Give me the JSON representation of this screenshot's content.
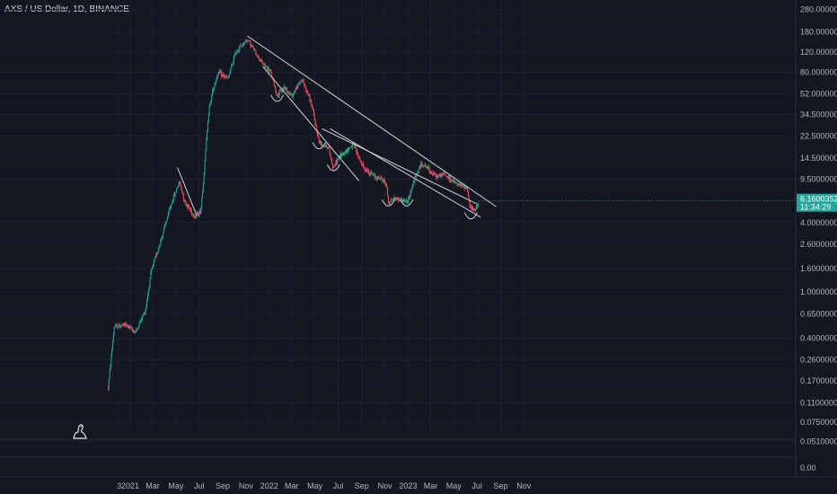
{
  "title": "AXS / US Dollar, 1D, BINANCE",
  "chart_data": {
    "type": "candlestick",
    "scale": "log",
    "y_ticks": [
      "280.0000000",
      "180.0000000",
      "120.0000000",
      "80.0000000",
      "52.0000000",
      "34.5000000",
      "22.5000000",
      "14.5000000",
      "9.5000000",
      "6.1600352",
      "4.0000000",
      "2.6000000",
      "1.6000000",
      "1.0000000",
      "0.6500000",
      "0.4000000",
      "0.2600000",
      "0.1700000",
      "0.1100000",
      "0.0750000",
      "0.0510000"
    ],
    "y_ticks_numeric": [
      280,
      180,
      120,
      80,
      52,
      34.5,
      22.5,
      14.5,
      9.5,
      6.1600352,
      4,
      2.6,
      1.6,
      1,
      0.65,
      0.4,
      0.26,
      0.17,
      0.11,
      0.075,
      0.051
    ],
    "x_ticks": [
      "3",
      "2021",
      "Mar",
      "May",
      "Jul",
      "Sep",
      "Nov",
      "2022",
      "Mar",
      "May",
      "Jul",
      "Sep",
      "Nov",
      "2023",
      "Mar",
      "May",
      "Jul",
      "Sep",
      "Nov"
    ],
    "last_price": {
      "label": "6.1600352",
      "countdown": "11:34:29",
      "value": 6.16
    },
    "volume_pane_value": "0.00",
    "series": [
      {
        "date": "2020-11-04",
        "close": 0.15
      },
      {
        "date": "2020-11-20",
        "close": 0.5
      },
      {
        "date": "2020-12-20",
        "close": 0.52
      },
      {
        "date": "2021-01-15",
        "close": 0.45
      },
      {
        "date": "2021-02-10",
        "close": 0.7
      },
      {
        "date": "2021-02-25",
        "close": 1.5
      },
      {
        "date": "2021-03-25",
        "close": 3.0
      },
      {
        "date": "2021-04-20",
        "close": 6.0
      },
      {
        "date": "2021-05-10",
        "close": 9.0
      },
      {
        "date": "2021-05-25",
        "close": 6.0
      },
      {
        "date": "2021-06-20",
        "close": 4.5
      },
      {
        "date": "2021-07-05",
        "close": 5.0
      },
      {
        "date": "2021-07-15",
        "close": 12.0
      },
      {
        "date": "2021-07-25",
        "close": 35.0
      },
      {
        "date": "2021-08-05",
        "close": 55.0
      },
      {
        "date": "2021-08-20",
        "close": 80.0
      },
      {
        "date": "2021-09-15",
        "close": 70.0
      },
      {
        "date": "2021-10-05",
        "close": 120.0
      },
      {
        "date": "2021-11-05",
        "close": 155.0
      },
      {
        "date": "2021-11-25",
        "close": 120.0
      },
      {
        "date": "2021-12-15",
        "close": 95.0
      },
      {
        "date": "2022-01-05",
        "close": 80.0
      },
      {
        "date": "2022-01-22",
        "close": 50.0
      },
      {
        "date": "2022-02-10",
        "close": 60.0
      },
      {
        "date": "2022-03-01",
        "close": 50.0
      },
      {
        "date": "2022-03-28",
        "close": 70.0
      },
      {
        "date": "2022-04-20",
        "close": 45.0
      },
      {
        "date": "2022-05-12",
        "close": 20.0
      },
      {
        "date": "2022-06-05",
        "close": 18.0
      },
      {
        "date": "2022-06-18",
        "close": 12.0
      },
      {
        "date": "2022-07-05",
        "close": 15.0
      },
      {
        "date": "2022-07-25",
        "close": 17.0
      },
      {
        "date": "2022-08-10",
        "close": 19.0
      },
      {
        "date": "2022-09-05",
        "close": 12.0
      },
      {
        "date": "2022-10-05",
        "close": 10.0
      },
      {
        "date": "2022-10-25",
        "close": 9.5
      },
      {
        "date": "2022-11-05",
        "close": 8.5
      },
      {
        "date": "2022-11-10",
        "close": 6.0
      },
      {
        "date": "2022-11-25",
        "close": 6.5
      },
      {
        "date": "2022-12-15",
        "close": 6.3
      },
      {
        "date": "2022-12-30",
        "close": 6.0
      },
      {
        "date": "2023-01-15",
        "close": 9.0
      },
      {
        "date": "2023-02-05",
        "close": 13.0
      },
      {
        "date": "2023-02-20",
        "close": 12.0
      },
      {
        "date": "2023-03-15",
        "close": 10.0
      },
      {
        "date": "2023-04-05",
        "close": 10.5
      },
      {
        "date": "2023-05-10",
        "close": 8.5
      },
      {
        "date": "2023-06-05",
        "close": 8.0
      },
      {
        "date": "2023-06-12",
        "close": 5.5
      },
      {
        "date": "2023-06-25",
        "close": 5.0
      },
      {
        "date": "2023-07-05",
        "close": 6.16
      }
    ],
    "trendlines": [
      {
        "name": "long-resistance",
        "from": {
          "date": "2021-11-05",
          "value": 165
        },
        "to": {
          "date": "2023-08-20",
          "value": 5.5
        }
      },
      {
        "name": "upper-wedge-resistance",
        "from": {
          "date": "2022-05-20",
          "value": 26
        },
        "to": {
          "date": "2023-07-01",
          "value": 5.8
        }
      },
      {
        "name": "wedge-support",
        "from": {
          "date": "2022-06-10",
          "value": 26
        },
        "to": {
          "date": "2023-07-10",
          "value": 4.45
        }
      },
      {
        "name": "falling-support",
        "from": {
          "date": "2021-12-15",
          "value": 90
        },
        "to": {
          "date": "2022-08-25",
          "value": 9.2
        }
      },
      {
        "name": "mid-2021-downtrend",
        "from": {
          "date": "2021-05-05",
          "value": 12
        },
        "to": {
          "date": "2021-06-25",
          "value": 4.6
        }
      }
    ],
    "arcs": [
      {
        "date": "2022-01-22",
        "value": 49
      },
      {
        "date": "2022-05-12",
        "value": 19
      },
      {
        "date": "2022-06-19",
        "value": 12.3
      },
      {
        "date": "2022-11-10",
        "value": 6.1
      },
      {
        "date": "2022-12-28",
        "value": 6.1
      },
      {
        "date": "2023-06-15",
        "value": 4.7
      }
    ]
  }
}
